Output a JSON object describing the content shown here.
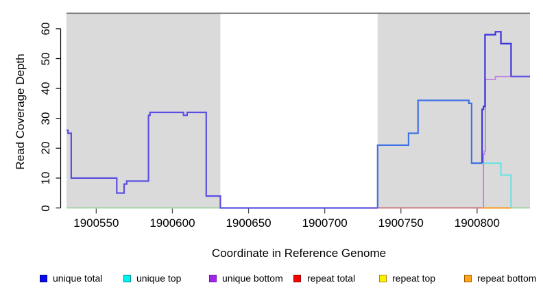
{
  "chart_data": {
    "type": "line",
    "subtype": "step-after",
    "title": "",
    "xlabel": "Coordinate in Reference Genome",
    "ylabel": "Read Coverage Depth",
    "xlim": [
      1900530.5,
      1900834.7
    ],
    "ylim": [
      0,
      63
    ],
    "xticks": [
      1900550,
      1900600,
      1900650,
      1900700,
      1900750,
      1900800
    ],
    "yticks": [
      0,
      10,
      20,
      30,
      40,
      50,
      60
    ],
    "grid": "off",
    "background_shading": {
      "color": "#DADADA",
      "ranges": [
        [
          1900530.5,
          1900631.5
        ],
        [
          1900734.7,
          1900834.7
        ]
      ]
    },
    "series": [
      {
        "name": "unique total",
        "color": "#0000CD",
        "steps": [
          [
            1900530.5,
            26
          ],
          [
            1900531.5,
            25
          ],
          [
            1900533.6,
            10
          ],
          [
            1900563.5,
            5
          ],
          [
            1900568.3,
            8
          ],
          [
            1900570,
            9
          ],
          [
            1900584.3,
            31
          ],
          [
            1900585.3,
            32
          ],
          [
            1900607.3,
            31
          ],
          [
            1900609.7,
            32
          ],
          [
            1900622.2,
            4
          ],
          [
            1900631.5,
            0
          ],
          [
            1900734.7,
            21
          ],
          [
            1900755,
            25
          ],
          [
            1900761.2,
            36
          ],
          [
            1900794.6,
            35
          ],
          [
            1900796.4,
            15
          ],
          [
            1900803.3,
            33
          ],
          [
            1900804.2,
            34
          ],
          [
            1900805.2,
            58
          ],
          [
            1900812,
            59
          ],
          [
            1900815.6,
            55
          ],
          [
            1900822.3,
            44
          ]
        ]
      },
      {
        "name": "unique top",
        "color": "#00FFFF",
        "steps": [
          [
            1900530.5,
            0
          ],
          [
            1900734.7,
            21
          ],
          [
            1900755,
            25
          ],
          [
            1900761.2,
            36
          ],
          [
            1900794.6,
            35
          ],
          [
            1900796.4,
            15
          ],
          [
            1900815.6,
            11
          ],
          [
            1900822.3,
            0
          ]
        ]
      },
      {
        "name": "unique bottom",
        "color": "#A020F0",
        "steps": [
          [
            1900530.5,
            26
          ],
          [
            1900531.5,
            25
          ],
          [
            1900533.6,
            10
          ],
          [
            1900563.5,
            5
          ],
          [
            1900568.3,
            8
          ],
          [
            1900570,
            9
          ],
          [
            1900584.3,
            31
          ],
          [
            1900585.3,
            32
          ],
          [
            1900607.3,
            31
          ],
          [
            1900609.7,
            32
          ],
          [
            1900622.2,
            4
          ],
          [
            1900631.5,
            0
          ],
          [
            1900804.2,
            18
          ],
          [
            1900804.8,
            19
          ],
          [
            1900805.5,
            43
          ],
          [
            1900812,
            44
          ]
        ]
      },
      {
        "name": "repeat total",
        "color": "#FF0000",
        "steps": [
          [
            1900530.5,
            0
          ]
        ]
      },
      {
        "name": "repeat top",
        "color": "#FFFF00",
        "steps": [
          [
            1900530.5,
            0
          ]
        ]
      },
      {
        "name": "repeat bottom",
        "color": "#FFA500",
        "steps": [
          [
            1900530.5,
            0
          ]
        ]
      }
    ],
    "rendered_lines": [
      {
        "name": "baseline-green-left",
        "color": "#8CCD8C",
        "width": 1.6,
        "points": [
          [
            1900530.5,
            0
          ]
        ],
        "end": 1900631.5
      },
      {
        "name": "baseline-crimson",
        "color": "#C84B5F",
        "width": 1.6,
        "points": [
          [
            1900734.7,
            0
          ]
        ],
        "end": 1900803.3
      },
      {
        "name": "baseline-orange",
        "color": "#FF9616",
        "width": 2,
        "points": [
          [
            1900803.3,
            0
          ]
        ],
        "end": 1900822.3
      },
      {
        "name": "baseline-green-right",
        "color": "#8CCD8C",
        "width": 1.6,
        "points": [
          [
            1900822.3,
            0
          ]
        ],
        "end": 1900834.7
      },
      {
        "name": "unique-top-visible",
        "color": "#63E3E3",
        "width": 2,
        "points": [
          [
            1900803.3,
            15
          ],
          [
            1900815.6,
            11
          ],
          [
            1900822.3,
            0
          ]
        ],
        "end": 1900822.3
      },
      {
        "name": "unique-bottom-visible",
        "color": "#C17FE0",
        "width": 1.7,
        "points": [
          [
            1900804.2,
            0
          ],
          [
            1900804.2,
            18
          ],
          [
            1900804.8,
            19
          ],
          [
            1900805.5,
            43
          ],
          [
            1900812,
            44
          ]
        ],
        "end": 1900834.7
      },
      {
        "name": "unique-total-left",
        "color": "#5A4FE2",
        "width": 2.2,
        "points": [
          [
            1900530.5,
            26
          ],
          [
            1900531.5,
            25
          ],
          [
            1900533.6,
            10
          ],
          [
            1900563.5,
            5
          ],
          [
            1900568.3,
            8
          ],
          [
            1900570,
            9
          ],
          [
            1900584.3,
            31
          ],
          [
            1900585.3,
            32
          ],
          [
            1900607.3,
            31
          ],
          [
            1900609.7,
            32
          ],
          [
            1900622.2,
            4
          ],
          [
            1900631.5,
            0
          ]
        ],
        "end": 1900734.7
      },
      {
        "name": "unique-total-mid",
        "color": "#3E70E6",
        "width": 2.2,
        "points": [
          [
            1900734.7,
            0
          ],
          [
            1900734.7,
            21
          ],
          [
            1900755,
            25
          ],
          [
            1900761.2,
            36
          ],
          [
            1900794.6,
            35
          ],
          [
            1900796.4,
            15
          ]
        ],
        "end": 1900803.3
      },
      {
        "name": "unique-total-peak",
        "color": "#3B33DB",
        "width": 2.2,
        "points": [
          [
            1900803.3,
            15
          ],
          [
            1900803.3,
            33
          ],
          [
            1900804.2,
            34
          ],
          [
            1900805.2,
            58
          ],
          [
            1900812,
            59
          ],
          [
            1900815.6,
            55
          ],
          [
            1900822.3,
            44
          ]
        ],
        "end": 1900822.3
      },
      {
        "name": "unique-total-right",
        "color": "#5A4FE2",
        "width": 2.2,
        "points": [
          [
            1900822.3,
            44
          ]
        ],
        "end": 1900834.7
      }
    ]
  },
  "axes": {
    "x_title": "Coordinate in Reference Genome",
    "y_title": "Read Coverage Depth",
    "x_tick_labels": [
      "1900550",
      "1900600",
      "1900650",
      "1900700",
      "1900750",
      "1900800"
    ],
    "y_tick_labels": [
      "0",
      "10",
      "20",
      "30",
      "40",
      "50",
      "60"
    ]
  },
  "legend": {
    "items": [
      {
        "label": "unique total",
        "fill": "#0B0BF0",
        "border": "#000085"
      },
      {
        "label": "unique top",
        "fill": "#00F2F2",
        "border": "#008B8B"
      },
      {
        "label": "unique bottom",
        "fill": "#A126EA",
        "border": "#7019A8"
      },
      {
        "label": "repeat total",
        "fill": "#FA0000",
        "border": "#8E0000"
      },
      {
        "label": "repeat top",
        "fill": "#F8F400",
        "border": "#B8860B"
      },
      {
        "label": "repeat bottom",
        "fill": "#FFA41C",
        "border": "#A06000"
      }
    ]
  },
  "colors": {
    "panel_shading": "#DADADA",
    "plot_top_border": "#6F6F6F",
    "axis": "#000000",
    "tick": "#4A4A4A"
  }
}
